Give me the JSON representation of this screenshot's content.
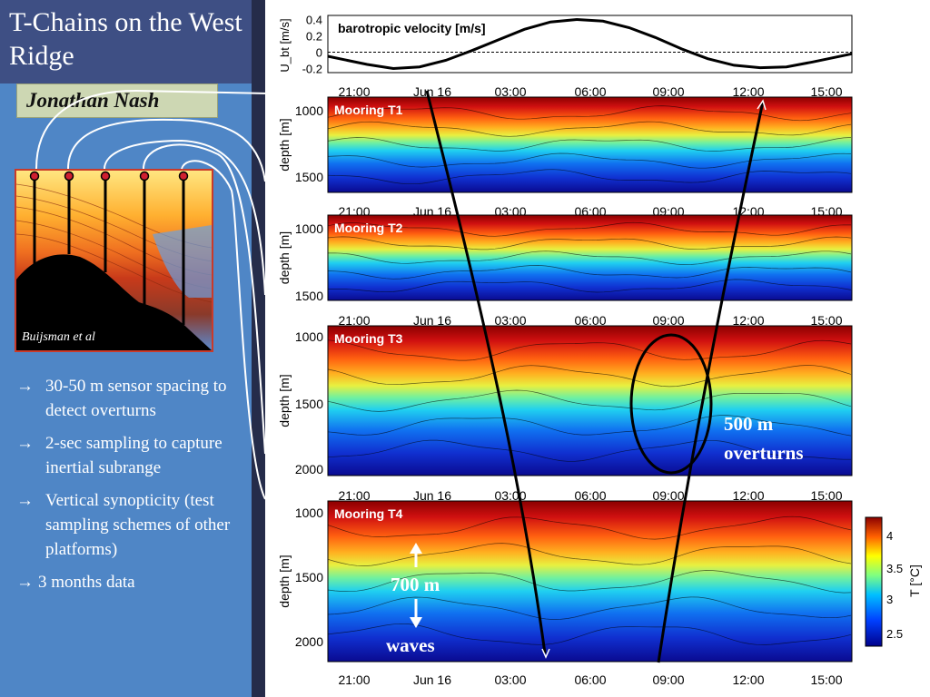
{
  "slide": {
    "title": "T-Chains on the West Ridge",
    "author": "Jonathan Nash",
    "image_caption": "Buijsman et al",
    "bullets": [
      "30-50 m sensor spacing to detect overturns",
      "2-sec sampling to capture inertial subrange",
      "Vertical synopticity (test sampling schemes of other platforms)",
      "3 months data"
    ]
  },
  "chart_data": [
    {
      "type": "line",
      "title": "barotropic velocity [m/s]",
      "ylabel": "U_bt [m/s]",
      "yticks": [
        "0.4",
        "0.2",
        "0",
        "-0.2"
      ],
      "ylim": [
        -0.25,
        0.45
      ],
      "xticks": [
        "21:00",
        "Jun 16",
        "03:00",
        "06:00",
        "09:00",
        "12:00",
        "15:00"
      ],
      "series": [
        {
          "values_x_hours": [
            -3.5,
            -2,
            -1,
            0,
            1,
            2,
            3,
            4,
            5,
            6,
            7,
            8,
            9,
            10,
            11,
            12,
            13,
            14,
            15,
            16.5
          ],
          "values": [
            -0.05,
            -0.15,
            -0.2,
            -0.18,
            -0.1,
            0.02,
            0.15,
            0.28,
            0.37,
            0.4,
            0.38,
            0.3,
            0.18,
            0.04,
            -0.08,
            -0.16,
            -0.19,
            -0.18,
            -0.12,
            -0.02
          ]
        }
      ]
    },
    {
      "type": "heatmap",
      "title": "Mooring T1",
      "ylabel": "depth [m]",
      "yticks": [
        "1000",
        "1500"
      ],
      "xticks": [
        "21:00",
        "Jun 16",
        "03:00",
        "06:00",
        "09:00",
        "12:00",
        "15:00"
      ]
    },
    {
      "type": "heatmap",
      "title": "Mooring T2",
      "ylabel": "depth [m]",
      "yticks": [
        "1000",
        "1500"
      ],
      "xticks": [
        "21:00",
        "Jun 16",
        "03:00",
        "06:00",
        "09:00",
        "12:00",
        "15:00"
      ]
    },
    {
      "type": "heatmap",
      "title": "Mooring T3",
      "ylabel": "depth [m]",
      "yticks": [
        "1000",
        "1500",
        "2000"
      ],
      "xticks": [
        "21:00",
        "Jun 16",
        "03:00",
        "06:00",
        "09:00",
        "12:00",
        "15:00"
      ]
    },
    {
      "type": "heatmap",
      "title": "Mooring T4",
      "ylabel": "depth [m]",
      "yticks": [
        "1000",
        "1500",
        "2000"
      ],
      "xticks": [
        "21:00",
        "Jun 16",
        "03:00",
        "06:00",
        "09:00",
        "12:00",
        "15:00"
      ]
    }
  ],
  "colorbar": {
    "label": "T [°C]",
    "ticks": [
      "4",
      "3.5",
      "3",
      "2.5"
    ]
  },
  "annotations": {
    "overturn_line1": "500 m",
    "overturn_line2": "overturns",
    "wave_line1": "700 m",
    "wave_line2": "waves"
  },
  "colors": {
    "warm": "#8b0000",
    "cold": "#00008b",
    "panel_blue": "#4f86c6"
  }
}
